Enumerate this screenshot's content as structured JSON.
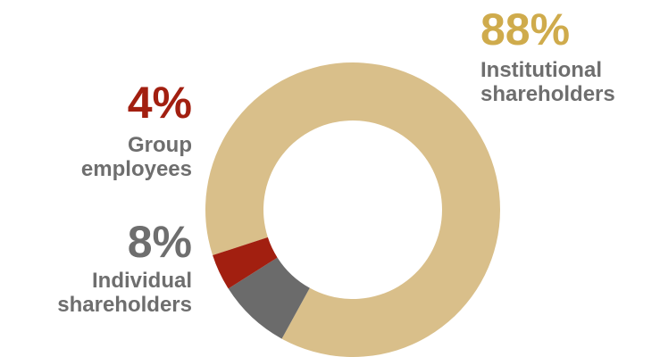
{
  "chart_data": {
    "type": "pie",
    "style": "donut",
    "slices": [
      {
        "label": "Institutional shareholders",
        "value": 88,
        "value_label": "88%",
        "desc_lines": [
          "Institutional",
          "shareholders"
        ],
        "color": "#d9bf8a",
        "label_color": "#cfab4c"
      },
      {
        "label": "Individual shareholders",
        "value": 8,
        "value_label": "8%",
        "desc_lines": [
          "Individual",
          "shareholders"
        ],
        "color": "#6b6b6b",
        "label_color": "#6e6e6e"
      },
      {
        "label": "Group employees",
        "value": 4,
        "value_label": "4%",
        "desc_lines": [
          "Group",
          "employees"
        ],
        "color": "#a21f10",
        "label_color": "#a21f10"
      }
    ],
    "legend": "none"
  },
  "text_color": "#6e6e6e"
}
